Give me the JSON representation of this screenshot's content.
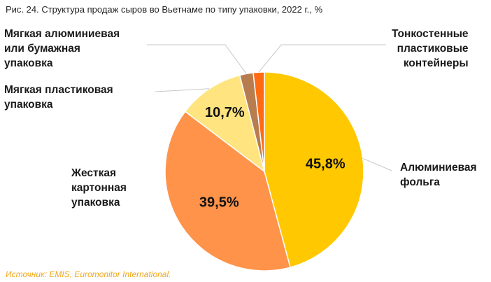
{
  "title": "Рис. 24. Структура продаж сыров во Вьетнаме по типу упаковки, 2022 г., %",
  "source": "Источник: EMIS, Euromonitor International.",
  "chart_data": {
    "type": "pie",
    "categories": [
      "Алюминиевая фольга",
      "Жесткая картонная упаковка",
      "Мягкая пластиковая упаковка",
      "Мягкая алюминиевая или бумажная упаковка",
      "Тонкостенные пластиковые контейнеры"
    ],
    "values": [
      45.8,
      39.5,
      10.7,
      2.2,
      1.8
    ],
    "value_labels": [
      "45,8%",
      "39,5%",
      "10,7%",
      "",
      ""
    ],
    "colors": [
      "#ffc800",
      "#ff934a",
      "#ffe480",
      "#b87d4f",
      "#ff6a13"
    ],
    "labels": [
      "Алюминиевая\nфольга",
      "Жесткая\nкартонная\nупаковка",
      "Мягкая пластиковая\nупаковка",
      "Мягкая алюминиевая\nили бумажная\nупаковка",
      "Тонкостенные\nпластиковые\nконтейнеры"
    ]
  }
}
